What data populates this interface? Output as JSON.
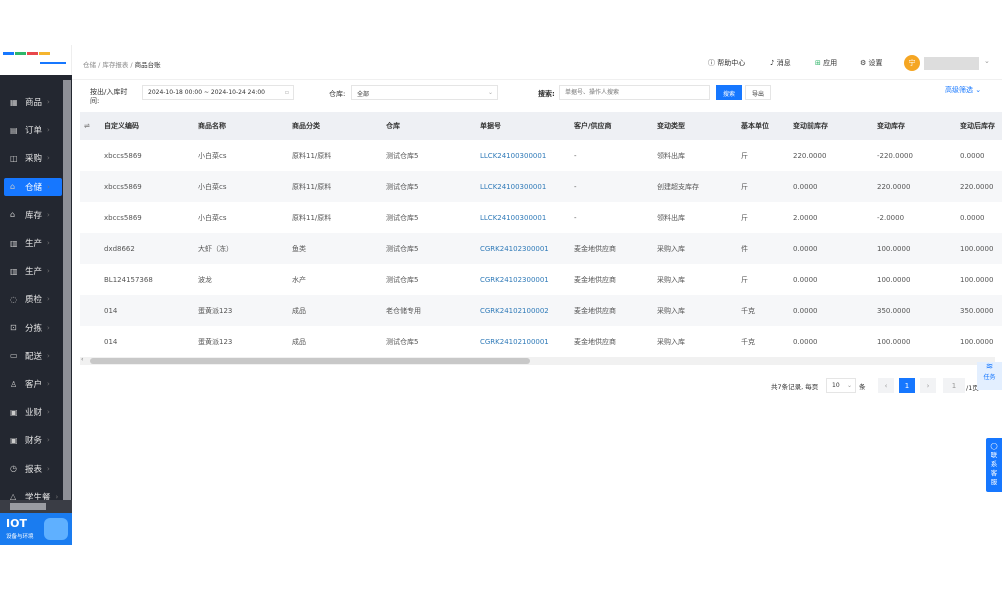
{
  "breadcrumb": [
    "仓储",
    "库存报表",
    "商品台账"
  ],
  "header": {
    "help": "帮助中心",
    "messages": "消息",
    "apps": "应用",
    "settings": "设置",
    "avatar_initial": "宁"
  },
  "sidebar": {
    "items": [
      {
        "label": "商品",
        "icon": "grid-icon"
      },
      {
        "label": "订单",
        "icon": "order-icon"
      },
      {
        "label": "采购",
        "icon": "basket-icon"
      },
      {
        "label": "仓储",
        "icon": "warehouse-icon",
        "active": true
      },
      {
        "label": "库存",
        "icon": "home-icon"
      },
      {
        "label": "生产",
        "icon": "factory-icon"
      },
      {
        "label": "生产",
        "icon": "factory-icon"
      },
      {
        "label": "质检",
        "icon": "shield-icon"
      },
      {
        "label": "分拣",
        "icon": "sort-icon"
      },
      {
        "label": "配送",
        "icon": "truck-icon"
      },
      {
        "label": "客户",
        "icon": "user-icon"
      },
      {
        "label": "业财",
        "icon": "chart-icon"
      },
      {
        "label": "财务",
        "icon": "finance-icon"
      },
      {
        "label": "报表",
        "icon": "clock-icon"
      },
      {
        "label": "学生餐",
        "icon": "meal-icon"
      }
    ],
    "iot_title": "IOT",
    "iot_subtitle": "设备与环境"
  },
  "filters": {
    "time_label": "按出/入库时间:",
    "time_value": "2024-10-18 00:00 ~ 2024-10-24 24:00",
    "warehouse_label": "仓库:",
    "warehouse_value": "全部",
    "search_label": "搜索:",
    "search_placeholder": "单据号、操作人搜索",
    "search_button": "搜索",
    "export_button": "导出",
    "advanced": "高级筛选"
  },
  "table": {
    "columns": [
      "自定义编码",
      "商品名称",
      "商品分类",
      "仓库",
      "单据号",
      "客户/供应商",
      "变动类型",
      "基本单位",
      "变动前库存",
      "变动库存",
      "变动后库存"
    ],
    "rows": [
      [
        "xbccs5869",
        "小白菜cs",
        "原料11/原料",
        "测试仓库5",
        "LLCK24100300001",
        "-",
        "领料出库",
        "斤",
        "220.0000",
        "-220.0000",
        "0.0000"
      ],
      [
        "xbccs5869",
        "小白菜cs",
        "原料11/原料",
        "测试仓库5",
        "LLCK24100300001",
        "-",
        "创建超支库存",
        "斤",
        "0.0000",
        "220.0000",
        "220.0000"
      ],
      [
        "xbccs5869",
        "小白菜cs",
        "原料11/原料",
        "测试仓库5",
        "LLCK24100300001",
        "-",
        "领料出库",
        "斤",
        "2.0000",
        "-2.0000",
        "0.0000"
      ],
      [
        "dxd8662",
        "大虾（冻）",
        "鱼类",
        "测试仓库5",
        "CGRK24102300001",
        "麦金地供应商",
        "采购入库",
        "件",
        "0.0000",
        "100.0000",
        "100.0000"
      ],
      [
        "BL124157368",
        "波龙",
        "水产",
        "测试仓库5",
        "CGRK24102300001",
        "麦金地供应商",
        "采购入库",
        "斤",
        "0.0000",
        "100.0000",
        "100.0000"
      ],
      [
        "014",
        "蛋黄派123",
        "成品",
        "老仓储专用",
        "CGRK24102100002",
        "麦金地供应商",
        "采购入库",
        "千克",
        "0.0000",
        "350.0000",
        "350.0000"
      ],
      [
        "014",
        "蛋黄派123",
        "成品",
        "测试仓库5",
        "CGRK24102100001",
        "麦金地供应商",
        "采购入库",
        "千克",
        "0.0000",
        "100.0000",
        "100.0000"
      ]
    ]
  },
  "pagination": {
    "total_text": "共7条记录, 每页",
    "page_size": "10",
    "unit": "条",
    "current": "1",
    "jump_value": "1",
    "total_pages": "/1页"
  },
  "floating": {
    "task": "任务",
    "customer_service": "联系客服"
  },
  "colors": {
    "accent": "#1677ff",
    "sidebar": "#232730",
    "link": "#2f7ab8"
  }
}
